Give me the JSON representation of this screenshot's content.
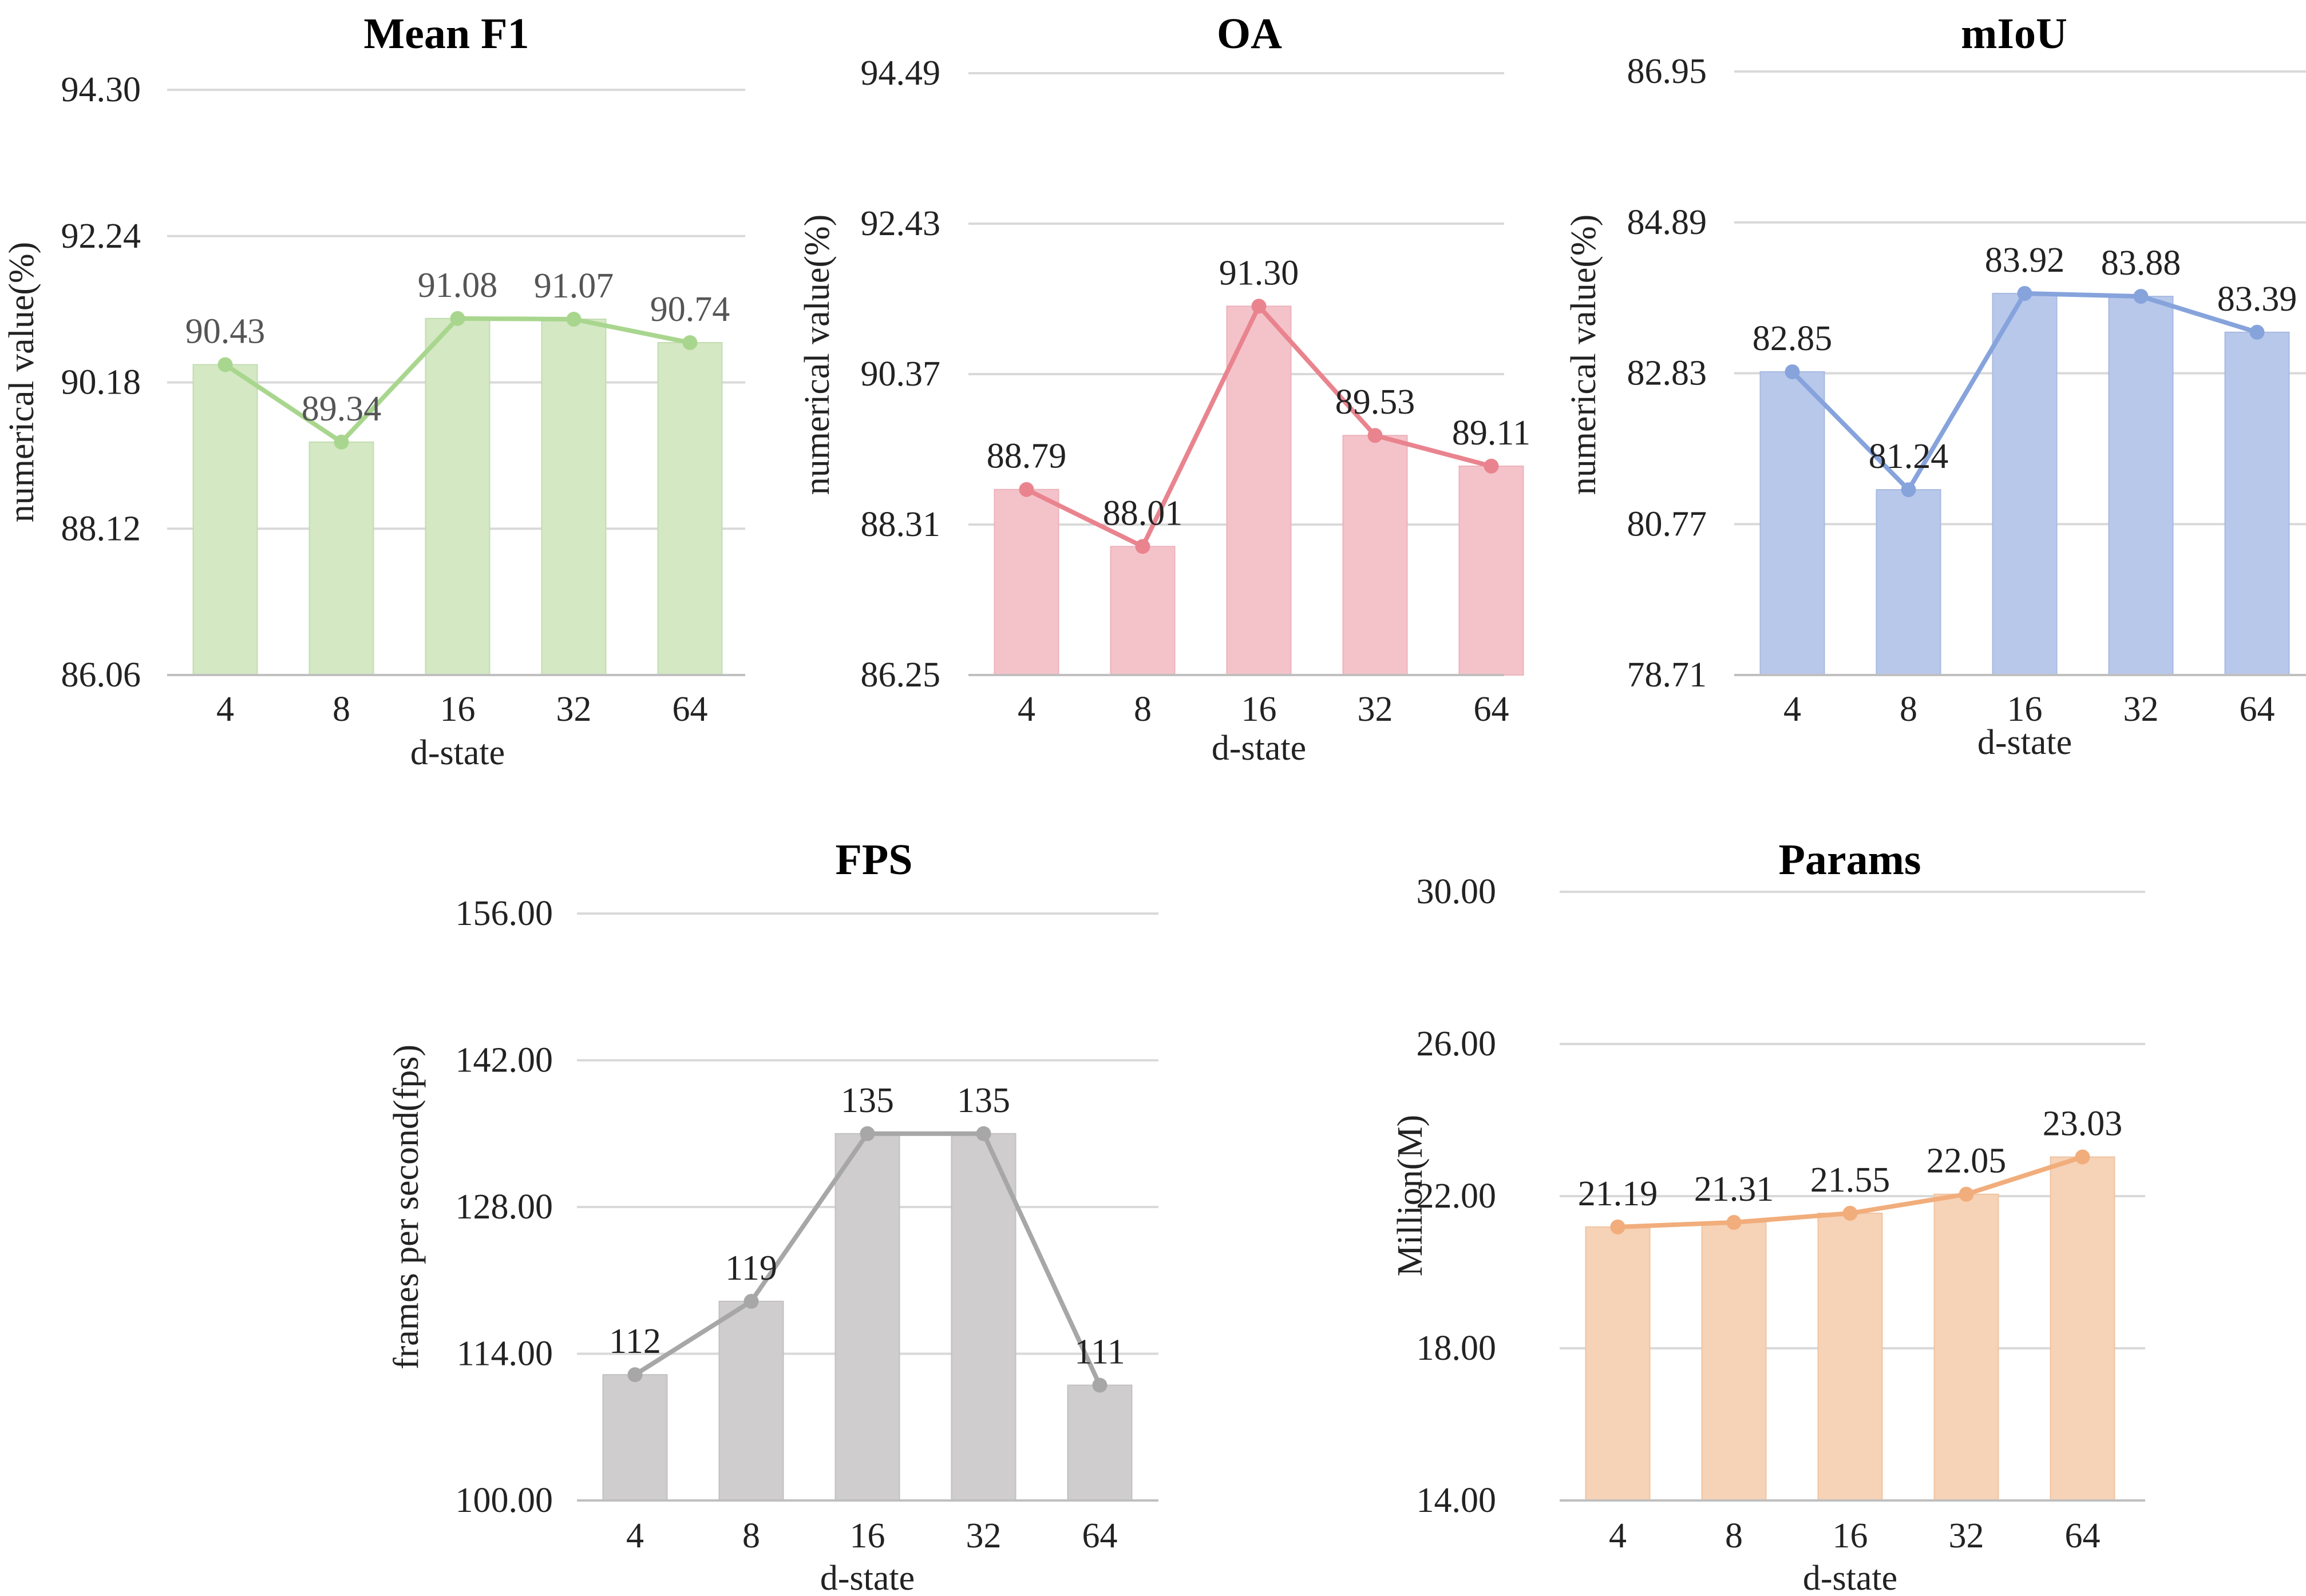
{
  "chart_data": [
    {
      "type": "bar",
      "title": "Mean F1",
      "categories": [
        "4",
        "8",
        "16",
        "32",
        "64"
      ],
      "values": [
        90.43,
        89.34,
        91.08,
        91.07,
        90.74
      ],
      "line_values": [
        90.43,
        89.34,
        91.08,
        91.07,
        90.74
      ],
      "data_labels": [
        "90.43",
        "89.34",
        "91.08",
        "91.07",
        "90.74"
      ],
      "xlabel": "d-state",
      "ylabel": "numerical value(%)",
      "ylim": [
        86.06,
        94.3
      ],
      "yticks": [
        "86.06",
        "88.12",
        "90.18",
        "92.24",
        "94.30"
      ],
      "bar_color": "#d3e8c3",
      "bar_edge": "#c3dcb0",
      "line_color": "#a9d68e",
      "label_color": "#555555",
      "grid": true
    },
    {
      "type": "bar",
      "title": "OA",
      "categories": [
        "4",
        "8",
        "16",
        "32",
        "64"
      ],
      "values": [
        88.79,
        88.01,
        91.3,
        89.53,
        89.11
      ],
      "line_values": [
        88.79,
        88.01,
        91.3,
        89.53,
        89.11
      ],
      "data_labels": [
        "88.79",
        "88.01",
        "91.30",
        "89.53",
        "89.11"
      ],
      "xlabel": "d-state",
      "ylabel": "numerical value(%)",
      "ylim": [
        86.25,
        94.49
      ],
      "yticks": [
        "86.25",
        "88.31",
        "90.37",
        "92.43",
        "94.49"
      ],
      "bar_color": "#f4c3ca",
      "bar_edge": "#ecb2bb",
      "line_color": "#e9848f",
      "label_color": "#222222",
      "grid": true
    },
    {
      "type": "bar",
      "title": "mIoU",
      "categories": [
        "4",
        "8",
        "16",
        "32",
        "64"
      ],
      "values": [
        82.85,
        81.24,
        83.92,
        83.88,
        83.39
      ],
      "line_values": [
        82.85,
        81.24,
        83.92,
        83.88,
        83.39
      ],
      "data_labels": [
        "82.85",
        "81.24",
        "83.92",
        "83.88",
        "83.39"
      ],
      "xlabel": "d-state",
      "ylabel": "numerical value(%)",
      "ylim": [
        78.71,
        86.95
      ],
      "yticks": [
        "78.71",
        "80.77",
        "82.83",
        "84.89",
        "86.95"
      ],
      "bar_color": "#b8c8eb",
      "bar_edge": "#a8b9e0",
      "line_color": "#86a3dc",
      "label_color": "#222222",
      "grid": true
    },
    {
      "type": "bar",
      "title": "FPS",
      "categories": [
        "4",
        "8",
        "16",
        "32",
        "64"
      ],
      "values": [
        112,
        119,
        135,
        135,
        111
      ],
      "line_values": [
        112,
        119,
        135,
        135,
        111
      ],
      "data_labels": [
        "112",
        "119",
        "135",
        "135",
        "111"
      ],
      "xlabel": "d-state",
      "ylabel": "frames per second(fps)",
      "ylim": [
        100.0,
        156.0
      ],
      "yticks": [
        "100.00",
        "114.00",
        "128.00",
        "142.00",
        "156.00"
      ],
      "bar_color": "#cfcdce",
      "bar_edge": "#c2c0c1",
      "line_color": "#a7a7a7",
      "label_color": "#222222",
      "grid": true
    },
    {
      "type": "bar",
      "title": "Params",
      "categories": [
        "4",
        "8",
        "16",
        "32",
        "64"
      ],
      "values": [
        21.19,
        21.31,
        21.55,
        22.05,
        23.03
      ],
      "line_values": [
        21.19,
        21.31,
        21.55,
        22.05,
        23.03
      ],
      "data_labels": [
        "21.19",
        "21.31",
        "21.55",
        "22.05",
        "23.03"
      ],
      "xlabel": "d-state",
      "ylabel": "Million(M)",
      "ylim": [
        14.0,
        30.0
      ],
      "yticks": [
        "14.00",
        "18.00",
        "22.00",
        "26.00",
        "30.00"
      ],
      "bar_color": "#f6d2b6",
      "bar_edge": "#efc4a3",
      "line_color": "#f1ad7b",
      "label_color": "#222222",
      "grid": true
    }
  ]
}
